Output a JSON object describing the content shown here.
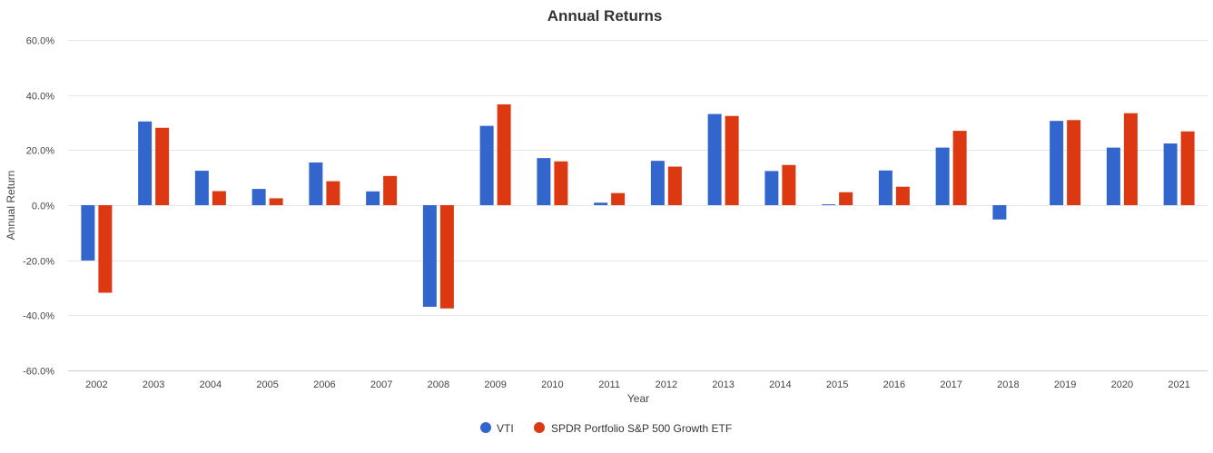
{
  "chart_data": {
    "type": "bar",
    "title": "Annual Returns",
    "xlabel": "Year",
    "ylabel": "Annual Return",
    "ylim": [
      -60,
      60
    ],
    "yticks": [
      "60.0%",
      "40.0%",
      "20.0%",
      "0.0%",
      "-20.0%",
      "-40.0%",
      "-60.0%"
    ],
    "ytick_values": [
      60,
      40,
      20,
      0,
      -20,
      -40,
      -60
    ],
    "grid": true,
    "legend_position": "bottom-center",
    "categories": [
      "2002",
      "2003",
      "2004",
      "2005",
      "2006",
      "2007",
      "2008",
      "2009",
      "2010",
      "2011",
      "2012",
      "2013",
      "2014",
      "2015",
      "2016",
      "2017",
      "2018",
      "2019",
      "2020",
      "2021"
    ],
    "series": [
      {
        "name": "VTI",
        "color": "#3366cc",
        "values": [
          -20.1,
          30.4,
          12.5,
          5.9,
          15.5,
          5.0,
          -36.9,
          28.8,
          17.1,
          0.9,
          16.1,
          33.1,
          12.4,
          0.3,
          12.6,
          20.9,
          -5.2,
          30.6,
          20.9,
          22.4
        ]
      },
      {
        "name": "SPDR Portfolio S&P 500 Growth ETF",
        "color": "#dc3912",
        "values": [
          -31.8,
          28.1,
          5.1,
          2.5,
          8.7,
          10.6,
          -37.5,
          36.6,
          15.9,
          4.4,
          14.0,
          32.4,
          14.6,
          4.7,
          6.7,
          27.0,
          0.0,
          30.9,
          33.4,
          26.8
        ]
      }
    ]
  }
}
